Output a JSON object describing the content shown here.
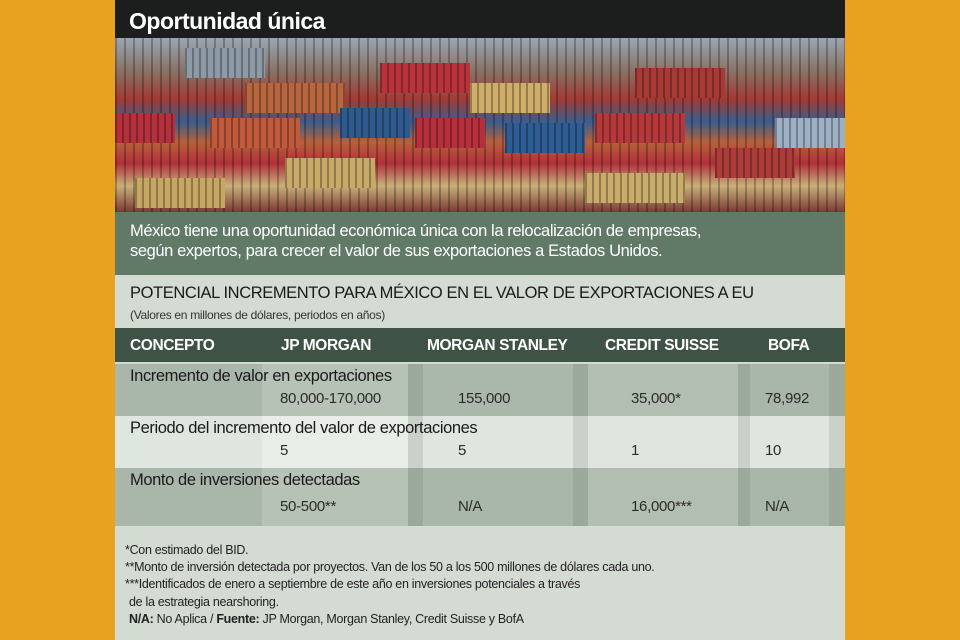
{
  "title": "Oportunidad única",
  "intro": [
    "México tiene una oportunidad económica única con la relocalización de empresas,",
    "según expertos, para crecer el valor de sus exportaciones a Estados Unidos."
  ],
  "section_title": "POTENCIAL INCREMENTO PARA MÉXICO EN EL VALOR DE EXPORTACIONES A EU",
  "section_subtitle": "(Valores en millones de dólares, periodos en años)",
  "table": {
    "headers": [
      "CONCEPTO",
      "JP MORGAN",
      "MORGAN STANLEY",
      "CREDIT SUISSE",
      "BOFA"
    ],
    "rows": [
      {
        "label": "Incremento de valor en exportaciones",
        "values": [
          "80,000-170,000",
          "155,000",
          "35,000*",
          "78,992"
        ]
      },
      {
        "label": "Periodo del incremento del valor de exportaciones",
        "values": [
          "5",
          "5",
          "1",
          "10"
        ]
      },
      {
        "label": "Monto de inversiones detectadas",
        "values": [
          "50-500**",
          "N/A",
          "16,000***",
          "N/A"
        ]
      }
    ]
  },
  "notes": [
    "*Con estimado del BID.",
    "**Monto de inversión detectada por proyectos. Van de los 50 a los 500 millones de dólares cada uno.",
    "***Identificados de enero a septiembre de este año en inversiones potenciales a través",
    "de la estrategia nearshoring."
  ],
  "source": {
    "na_label": "N/A:",
    "na_text": " No Aplica  / ",
    "source_label": "Fuente:",
    "source_text": " JP Morgan, Morgan Stanley, Credit Suisse y BofA"
  },
  "colors": {
    "background": "#e9a21f",
    "title_bar": "#1b1e1d",
    "intro_band": "#617a67",
    "table_header": "#3e5345"
  }
}
